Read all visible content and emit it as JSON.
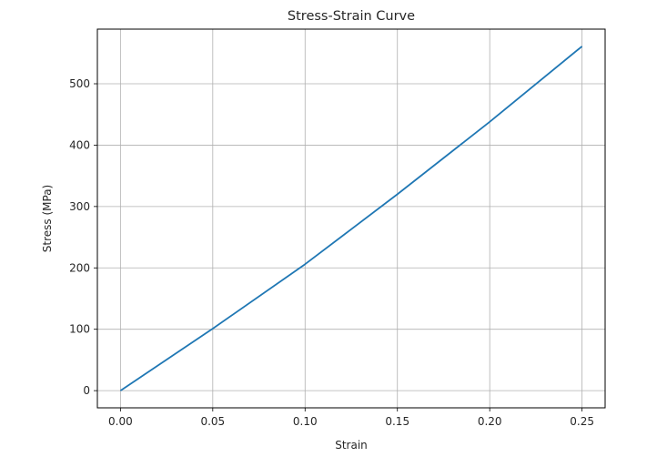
{
  "chart_data": {
    "type": "line",
    "title": "Stress-Strain Curve",
    "xlabel": "Strain",
    "ylabel": "Stress (MPa)",
    "xlim": [
      -0.0125,
      0.2625
    ],
    "ylim": [
      -28,
      589
    ],
    "grid": true,
    "legend": null,
    "xticks": [
      0.0,
      0.05,
      0.1,
      0.15,
      0.2,
      0.25
    ],
    "xtick_labels": [
      "0.00",
      "0.05",
      "0.10",
      "0.15",
      "0.20",
      "0.25"
    ],
    "yticks": [
      0,
      100,
      200,
      300,
      400,
      500
    ],
    "ytick_labels": [
      "0",
      "100",
      "200",
      "300",
      "400",
      "500"
    ],
    "series": [
      {
        "name": "Stress-Strain",
        "color": "#1f77b4",
        "x": [
          0.0,
          0.05,
          0.1,
          0.15,
          0.2,
          0.25
        ],
        "values": [
          0,
          101,
          206,
          320,
          438,
          561
        ]
      }
    ]
  },
  "colors": {
    "line": "#1f77b4",
    "grid": "#b0b0b0",
    "axes": "#000000",
    "text": "#262626"
  }
}
